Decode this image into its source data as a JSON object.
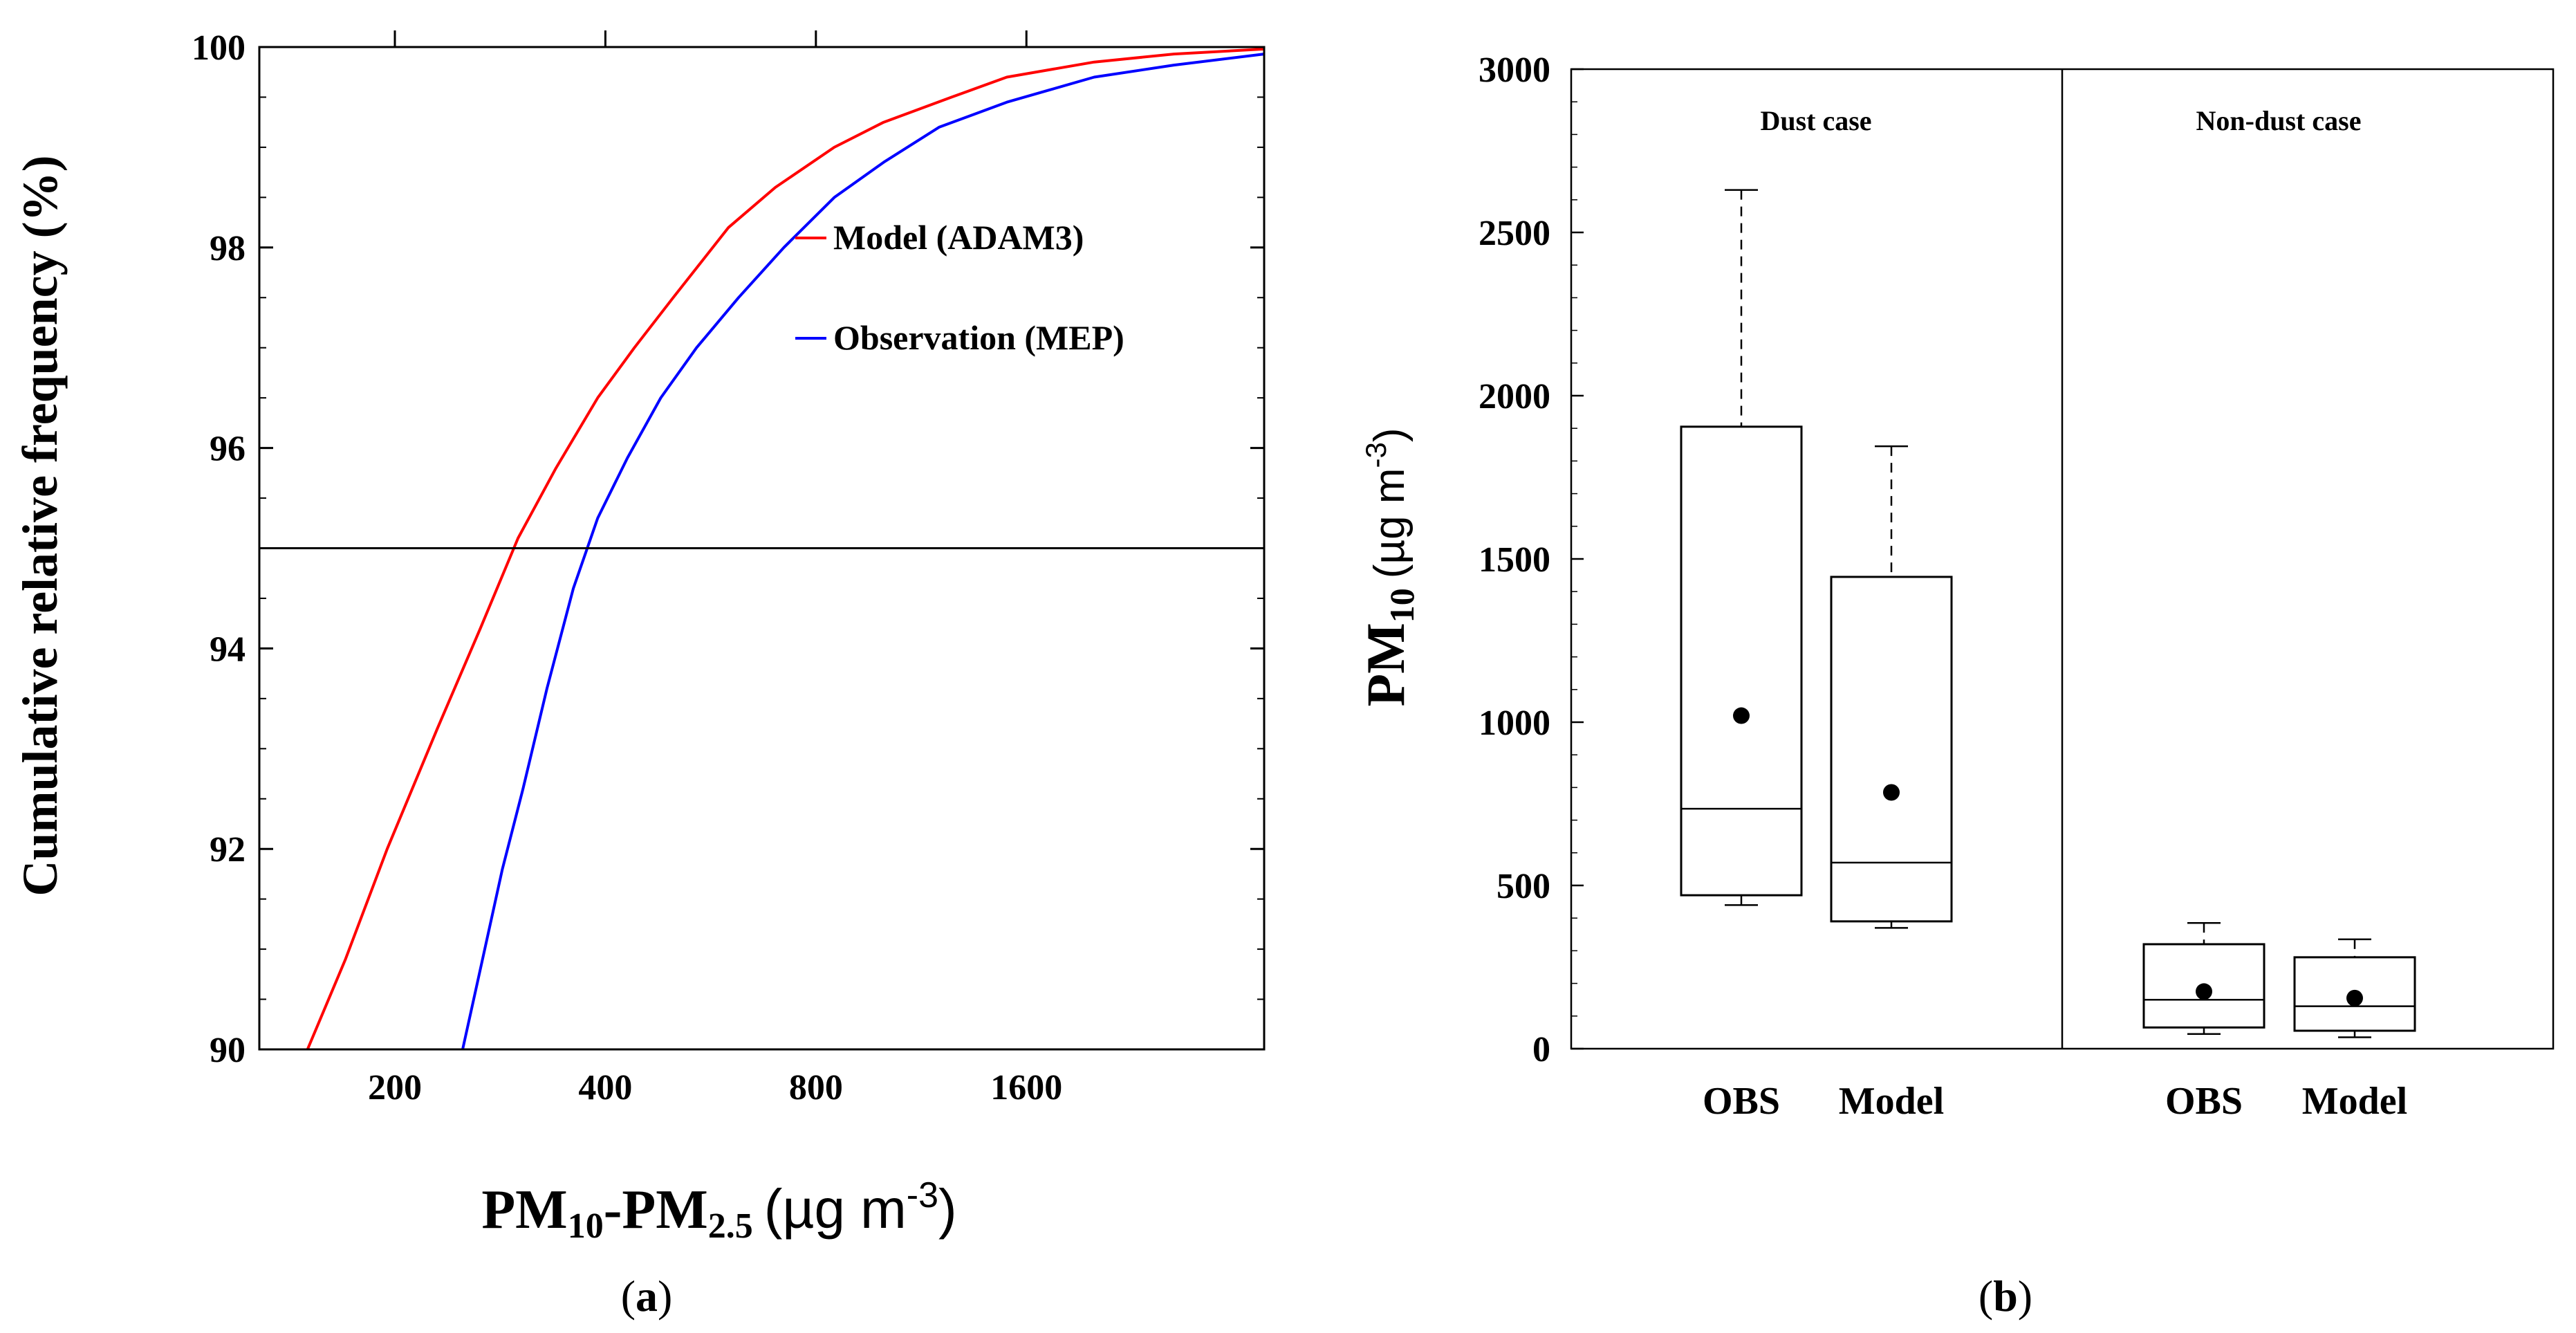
{
  "chart_data": [
    {
      "id": "a",
      "type": "line",
      "panel_label": "(a)",
      "panel_letter": "a",
      "ylabel": "Cumulative relative frequency (%)",
      "xlabel_parts": {
        "pm": "PM",
        "sub10": "10",
        "dash": "-PM",
        "sub25": "2.5",
        "units": "(µg m",
        "exp": "-3",
        "close": ")"
      },
      "xscale": "log",
      "xlim": [
        128,
        3500
      ],
      "ylim": [
        90,
        100
      ],
      "xticks": [
        200,
        400,
        800,
        1600
      ],
      "xtick_labels": [
        "200",
        "400",
        "800",
        "1600"
      ],
      "yticks": [
        90,
        92,
        94,
        96,
        98,
        100
      ],
      "ytick_labels": [
        "90",
        "92",
        "94",
        "96",
        "98",
        "100"
      ],
      "reference_line_y": 95,
      "legend_position": "upper-right",
      "series": [
        {
          "name": "Model (ADAM3)",
          "color": "#ff0000",
          "x": [
            150,
            170,
            195,
            230,
            265,
            300,
            340,
            390,
            440,
            500,
            600,
            700,
            850,
            1000,
            1250,
            1500,
            2000,
            2600,
            3500
          ],
          "y": [
            90.0,
            90.9,
            92.0,
            93.2,
            94.2,
            95.1,
            95.8,
            96.5,
            97.0,
            97.5,
            98.2,
            98.6,
            99.0,
            99.25,
            99.5,
            99.7,
            99.85,
            99.93,
            99.98
          ]
        },
        {
          "name": "Observation (MEP)",
          "color": "#0000ff",
          "x": [
            250,
            265,
            285,
            305,
            330,
            360,
            390,
            430,
            480,
            540,
            620,
            720,
            850,
            1000,
            1200,
            1500,
            2000,
            2600,
            3500
          ],
          "y": [
            90.0,
            90.8,
            91.8,
            92.6,
            93.6,
            94.6,
            95.3,
            95.9,
            96.5,
            97.0,
            97.5,
            98.0,
            98.5,
            98.85,
            99.2,
            99.45,
            99.7,
            99.82,
            99.93
          ]
        }
      ]
    },
    {
      "id": "b",
      "type": "box",
      "panel_label": "(b)",
      "panel_letter": "b",
      "ylabel_parts": {
        "pm": "PM",
        "sub10": "10",
        "units": "(µg m",
        "exp": "-3",
        "close": ")"
      },
      "ylim": [
        0,
        3000
      ],
      "yticks": [
        0,
        500,
        1000,
        1500,
        2000,
        2500,
        3000
      ],
      "ytick_labels": [
        "0",
        "500",
        "1000",
        "1500",
        "2000",
        "2500",
        "3000"
      ],
      "groups": [
        {
          "name": "Dust case",
          "boxes": [
            {
              "label": "OBS",
              "whisker_low": 440,
              "q1": 470,
              "median": 735,
              "q3": 1905,
              "whisker_high": 2630,
              "mean": 1020
            },
            {
              "label": "Model",
              "whisker_low": 370,
              "q1": 390,
              "median": 570,
              "q3": 1445,
              "whisker_high": 1845,
              "mean": 785
            }
          ]
        },
        {
          "name": "Non-dust case",
          "boxes": [
            {
              "label": "OBS",
              "whisker_low": 45,
              "q1": 65,
              "median": 150,
              "q3": 320,
              "whisker_high": 385,
              "mean": 175
            },
            {
              "label": "Model",
              "whisker_low": 35,
              "q1": 55,
              "median": 130,
              "q3": 280,
              "whisker_high": 335,
              "mean": 155
            }
          ]
        }
      ]
    }
  ]
}
